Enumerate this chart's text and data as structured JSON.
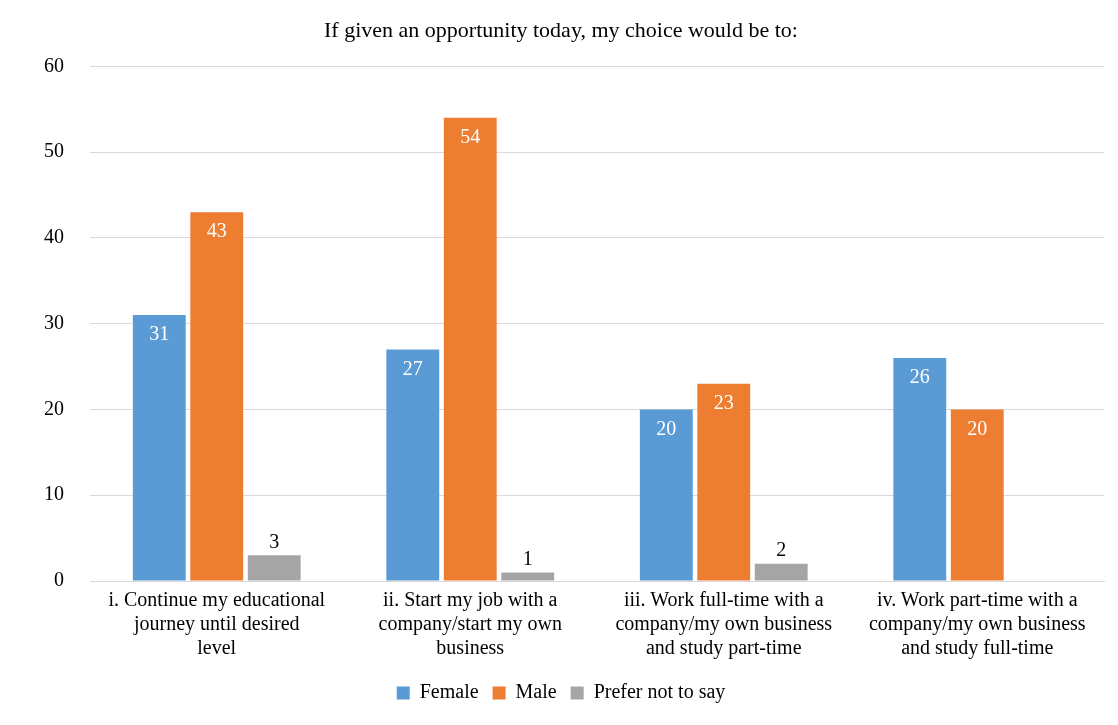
{
  "chart_data": {
    "type": "bar",
    "title": "If given an opportunity today, my choice would be to:",
    "categories": [
      "i. Continue my educational journey until desired level",
      "ii. Start my job with a company/start my own business",
      "iii. Work full-time with a company/my own business and study part-time",
      "iv. Work part-time with a company/my own business and study full-time"
    ],
    "series": [
      {
        "name": "Female",
        "color": "#5b9bd5",
        "values": [
          31,
          27,
          20,
          26
        ]
      },
      {
        "name": "Male",
        "color": "#ed7d31",
        "values": [
          43,
          54,
          23,
          20
        ]
      },
      {
        "name": "Prefer not to say",
        "color": "#a5a5a5",
        "values": [
          3,
          1,
          2,
          null
        ]
      }
    ],
    "ylim": [
      0,
      60
    ],
    "yticks": [
      0,
      10,
      20,
      30,
      40,
      50,
      60
    ],
    "grid": "y",
    "legend": "bottom",
    "data_labels": true
  }
}
